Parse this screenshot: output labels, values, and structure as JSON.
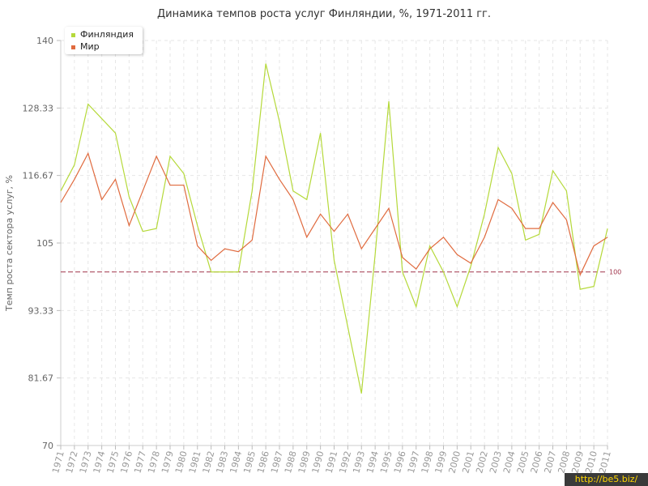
{
  "chart_data": {
    "type": "line",
    "title": "Динамика темпов роста услуг Финляндии, %, 1971-2011 гг.",
    "ylabel": "Темп роста сектора услуг, %",
    "xlabel": "",
    "ylim": [
      70,
      140
    ],
    "yticks": [
      "70",
      "81.67",
      "93.33",
      "105",
      "116.67",
      "128.33",
      "140"
    ],
    "x": [
      "1971",
      "1972",
      "1973",
      "1974",
      "1975",
      "1976",
      "1977",
      "1978",
      "1979",
      "1980",
      "1981",
      "1982",
      "1983",
      "1984",
      "1985",
      "1986",
      "1987",
      "1988",
      "1989",
      "1990",
      "1991",
      "1992",
      "1993",
      "1994",
      "1995",
      "1996",
      "1997",
      "1998",
      "1999",
      "2000",
      "2001",
      "2002",
      "2003",
      "2004",
      "2005",
      "2006",
      "2007",
      "2008",
      "2009",
      "2010",
      "2011"
    ],
    "series": [
      {
        "name": "Финляндия",
        "color": "#b5d93a",
        "values": [
          114,
          118.5,
          129,
          126.5,
          124,
          113,
          107,
          107.5,
          120,
          117,
          108,
          100,
          100,
          100,
          114,
          136,
          126,
          114,
          112.5,
          124,
          102,
          90.5,
          79,
          103,
          129.5,
          100,
          94,
          104.5,
          100,
          94,
          101,
          110,
          121.5,
          117,
          105.5,
          106.5,
          117.5,
          114,
          97,
          97.5,
          107.5
        ]
      },
      {
        "name": "Мир",
        "color": "#e06b3f",
        "values": [
          112,
          116,
          120.5,
          112.5,
          116,
          108,
          114,
          120,
          115,
          115,
          104.5,
          102,
          104,
          103.5,
          105.5,
          120,
          116,
          112.5,
          106,
          110,
          107,
          110,
          104,
          107.5,
          111,
          102.5,
          100.5,
          104,
          106,
          103,
          101.5,
          106,
          112.5,
          111,
          107.5,
          107.5,
          112,
          109,
          99.5,
          104.5,
          106
        ]
      }
    ],
    "reference_line": {
      "value": 100,
      "label": "100",
      "color": "#a0334a"
    },
    "grid": true,
    "legend_position": "top-left"
  },
  "watermark": "http://be5.biz/"
}
